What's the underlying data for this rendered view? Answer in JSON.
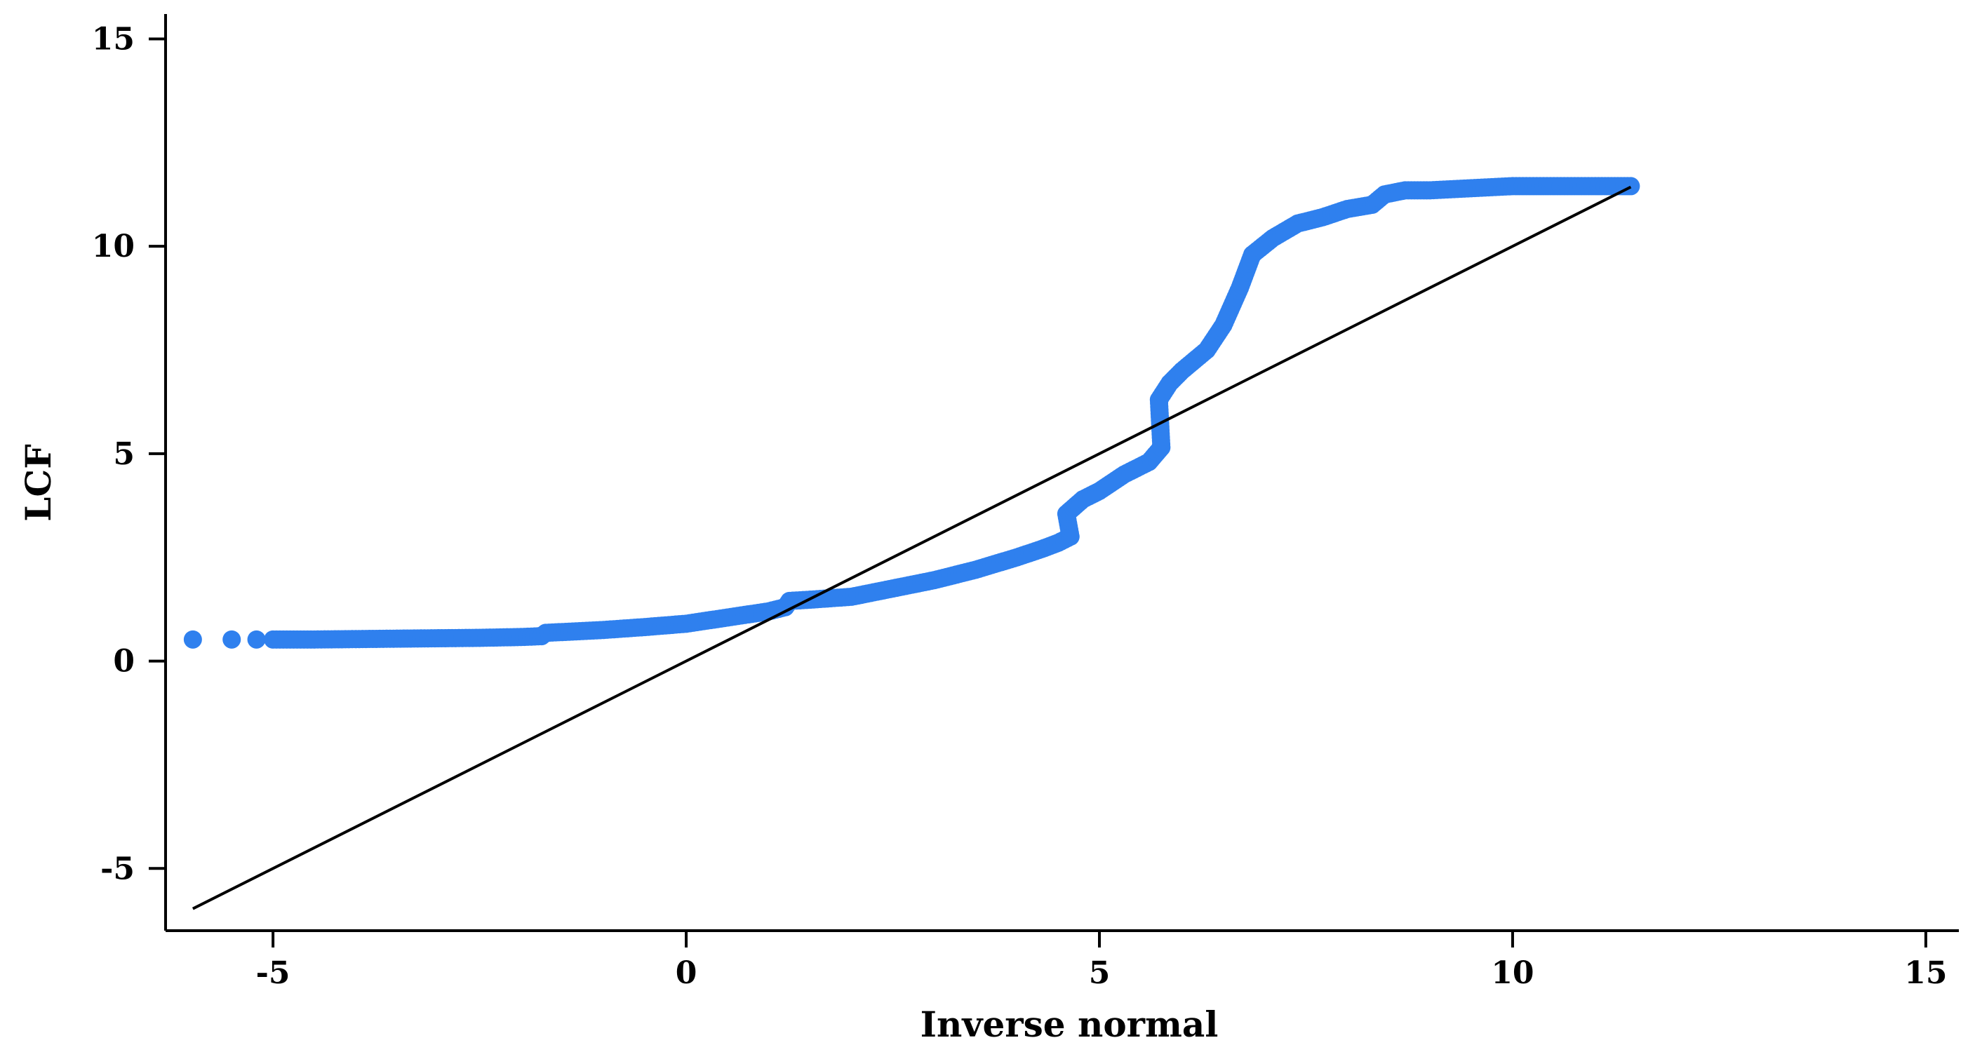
{
  "chart_data": {
    "type": "scatter",
    "title": "",
    "xlabel": "Inverse normal",
    "ylabel": "LCF",
    "xlim": [
      -6.3,
      15.4
    ],
    "ylim": [
      -6.5,
      15.6
    ],
    "xticks": [
      -5,
      0,
      5,
      10,
      15
    ],
    "yticks": [
      -5,
      0,
      5,
      10,
      15
    ],
    "xtick_labels": [
      "-5",
      "0",
      "5",
      "10",
      "15"
    ],
    "ytick_labels": [
      "-5",
      "0",
      "5",
      "10",
      "15"
    ],
    "grid": false,
    "legend": "none",
    "series": [
      {
        "kind": "points",
        "color": "#2f80ee",
        "x": [
          -5.97,
          -5.5,
          -5.2,
          -5.0,
          -4.5,
          -4.0,
          -3.5,
          -3.0,
          -2.5,
          -2.0,
          -1.75,
          -1.7,
          -1.5,
          -1.0,
          -0.5,
          0.0,
          0.5,
          1.0,
          1.2,
          1.25,
          1.5,
          2.0,
          2.5,
          3.0,
          3.5,
          4.0,
          4.3,
          4.5,
          4.65,
          4.6,
          4.8,
          5.0,
          5.3,
          5.6,
          5.75,
          5.72,
          5.85,
          6.0,
          6.3,
          6.5,
          6.7,
          6.85,
          7.1,
          7.4,
          7.7,
          8.0,
          8.3,
          8.45,
          8.7,
          9.0,
          9.5,
          10.0,
          10.5,
          11.0,
          11.43
        ],
        "y": [
          0.52,
          0.52,
          0.52,
          0.52,
          0.52,
          0.53,
          0.54,
          0.55,
          0.56,
          0.58,
          0.6,
          0.68,
          0.7,
          0.75,
          0.82,
          0.9,
          1.05,
          1.2,
          1.3,
          1.45,
          1.48,
          1.55,
          1.75,
          1.95,
          2.2,
          2.5,
          2.7,
          2.85,
          3.0,
          3.55,
          3.9,
          4.1,
          4.5,
          4.8,
          5.15,
          6.3,
          6.7,
          7.0,
          7.5,
          8.1,
          9.0,
          9.8,
          10.2,
          10.55,
          10.7,
          10.9,
          11.0,
          11.25,
          11.35,
          11.35,
          11.4,
          11.45,
          11.45,
          11.45,
          11.45
        ]
      },
      {
        "kind": "line",
        "color": "#000000",
        "x": [
          -5.97,
          11.43
        ],
        "y": [
          -5.97,
          11.43
        ]
      }
    ]
  }
}
